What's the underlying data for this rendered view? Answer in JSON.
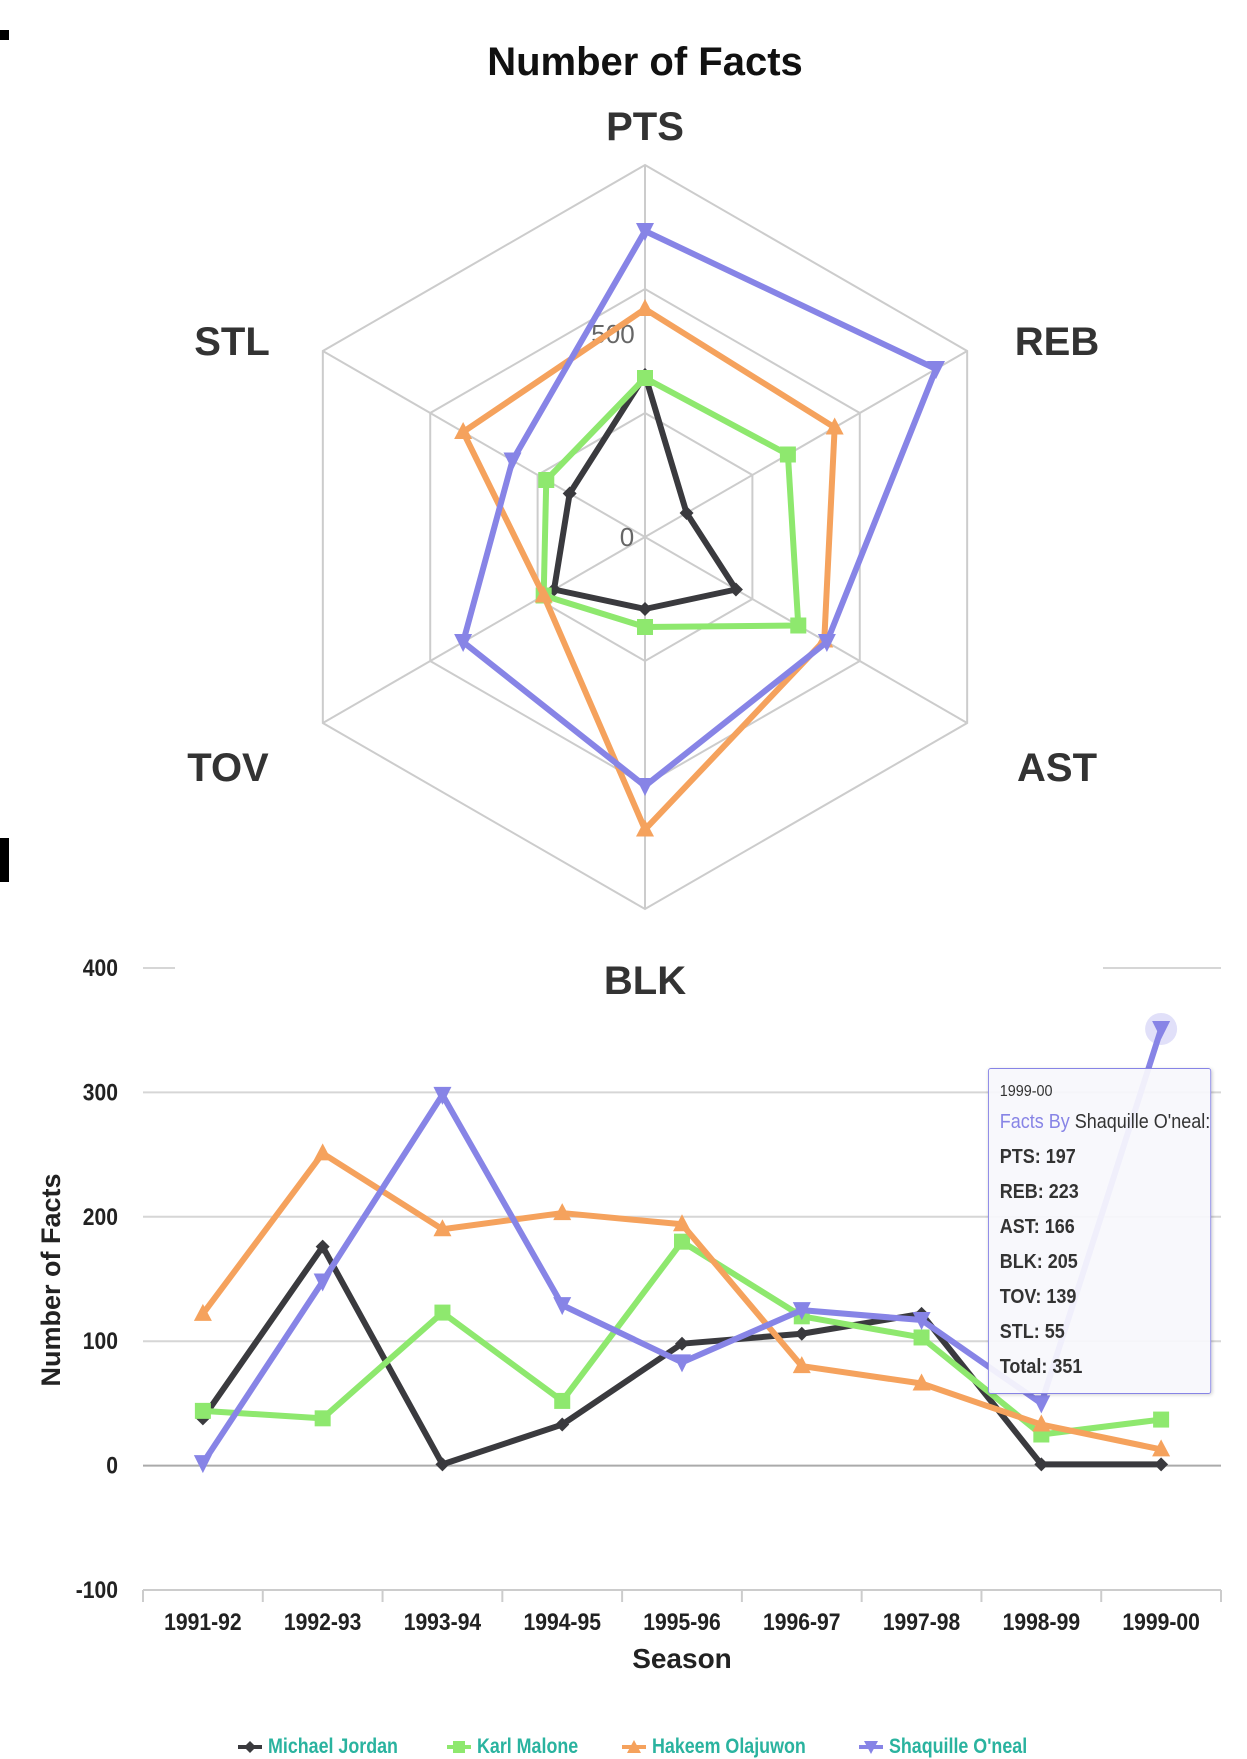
{
  "colors": {
    "jordan": "#3a3a3e",
    "malone": "#8ee86e",
    "olajuwon": "#f5a25d",
    "oneal": "#8784e6",
    "grid": "#cccccc",
    "legend_text": "#2ab39f"
  },
  "chart_data": [
    {
      "type": "radar",
      "title": "Number of Facts",
      "axes": [
        "PTS",
        "REB",
        "AST",
        "BLK",
        "TOV",
        "STL"
      ],
      "radial_ticks": [
        "0",
        "500"
      ],
      "series": [
        {
          "name": "Michael Jordan",
          "values": [
            540,
            160,
            350,
            240,
            350,
            290
          ],
          "marker": "diamond"
        },
        {
          "name": "Karl Malone",
          "values": [
            530,
            550,
            590,
            300,
            390,
            380
          ],
          "marker": "square"
        },
        {
          "name": "Hakeem Olajuwon",
          "values": [
            760,
            730,
            690,
            975,
            390,
            700
          ],
          "marker": "triangle"
        },
        {
          "name": "Shaquille O'neal",
          "values": [
            1020,
            1120,
            700,
            830,
            700,
            510
          ],
          "marker": "triangle-down"
        }
      ]
    },
    {
      "type": "line",
      "title": "",
      "xlabel": "Season",
      "ylabel": "Number of Facts",
      "ylim": [
        -100,
        400
      ],
      "yticks": [
        "400",
        "300",
        "200",
        "100",
        "0",
        "-100"
      ],
      "categories": [
        "1991-92",
        "1992-93",
        "1993-94",
        "1994-95",
        "1995-96",
        "1996-97",
        "1997-98",
        "1998-99",
        "1999-00"
      ],
      "series": [
        {
          "name": "Michael Jordan",
          "values": [
            38,
            176,
            1,
            33,
            98,
            106,
            122,
            1,
            1
          ],
          "marker": "diamond"
        },
        {
          "name": "Karl Malone",
          "values": [
            44,
            38,
            123,
            52,
            180,
            120,
            103,
            25,
            37
          ],
          "marker": "square"
        },
        {
          "name": "Hakeem Olajuwon",
          "values": [
            122,
            251,
            190,
            203,
            194,
            80,
            66,
            33,
            13
          ],
          "marker": "triangle"
        },
        {
          "name": "Shaquille O'neal",
          "values": [
            2,
            148,
            298,
            129,
            83,
            125,
            117,
            50,
            351
          ],
          "marker": "triangle-down"
        }
      ],
      "legend_position": "bottom-center",
      "tooltip": {
        "title": "1999-00",
        "by_label": "Facts By",
        "series_name": "Shaquille O'neal:",
        "lines": [
          "PTS: 197",
          "REB: 223",
          "AST: 166",
          "BLK: 205",
          "TOV: 139",
          "STL: 55",
          "Total: 351"
        ]
      }
    }
  ],
  "legend": [
    {
      "label": "Michael Jordan"
    },
    {
      "label": "Karl Malone"
    },
    {
      "label": "Hakeem Olajuwon"
    },
    {
      "label": "Shaquille O'neal"
    }
  ]
}
